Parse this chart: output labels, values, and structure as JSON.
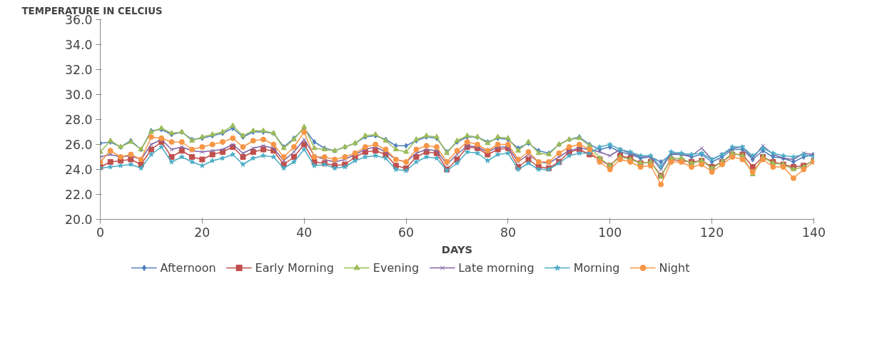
{
  "chart_data": {
    "type": "line",
    "ylabel": "TEMPERATURE IN CELCIUS",
    "xlabel": "DAYS",
    "x": [
      0,
      2,
      4,
      6,
      8,
      10,
      12,
      14,
      16,
      18,
      20,
      22,
      24,
      26,
      28,
      30,
      32,
      34,
      36,
      38,
      40,
      42,
      44,
      46,
      48,
      50,
      52,
      54,
      56,
      58,
      60,
      62,
      64,
      66,
      68,
      70,
      72,
      74,
      76,
      78,
      80,
      82,
      84,
      86,
      88,
      90,
      92,
      94,
      96,
      98,
      100,
      102,
      104,
      106,
      108,
      110,
      112,
      114,
      116,
      118,
      120,
      122,
      124,
      126,
      128,
      130,
      132,
      134,
      136,
      138,
      140
    ],
    "xlim": [
      0,
      140
    ],
    "xticks": [
      0,
      20,
      40,
      60,
      80,
      100,
      120,
      140
    ],
    "ylim": [
      20,
      36
    ],
    "yticks": [
      {
        "value": 20,
        "label": "20.0"
      },
      {
        "value": 22,
        "label": "22.0"
      },
      {
        "value": 24,
        "label": "24.0"
      },
      {
        "value": 26,
        "label": "26.0"
      },
      {
        "value": 28,
        "label": "28.0"
      },
      {
        "value": 30,
        "label": "30.0"
      },
      {
        "value": 32,
        "label": "32.0"
      },
      {
        "value": 34,
        "label": "34.0"
      },
      {
        "value": 36,
        "label": "36.0"
      }
    ],
    "grid": false,
    "legend": "bottom",
    "line_style": "solid",
    "series": [
      {
        "name": "Afternoon",
        "color": "#4f81bd",
        "marker": "diamond",
        "values": [
          26.1,
          26.2,
          25.8,
          26.3,
          25.6,
          27.1,
          27.2,
          26.8,
          27.0,
          26.4,
          26.5,
          26.7,
          26.9,
          27.3,
          26.6,
          27.0,
          27.0,
          26.9,
          25.8,
          26.5,
          27.3,
          26.2,
          25.7,
          25.5,
          25.8,
          26.1,
          26.6,
          26.7,
          26.4,
          25.9,
          25.9,
          26.3,
          26.6,
          26.5,
          25.4,
          26.2,
          26.6,
          26.6,
          26.2,
          26.5,
          26.4,
          25.7,
          26.1,
          25.5,
          25.3,
          26.0,
          26.4,
          26.6,
          26.0,
          25.6,
          25.8,
          25.4,
          25.2,
          24.9,
          25.0,
          24.6,
          25.2,
          25.2,
          25.0,
          25.2,
          24.6,
          25.0,
          25.6,
          25.6,
          24.8,
          25.5,
          25.0,
          24.9,
          24.6,
          25.0,
          25.2
        ]
      },
      {
        "name": "Early Morning",
        "color": "#c0504d",
        "marker": "square",
        "values": [
          24.2,
          24.6,
          24.7,
          24.8,
          24.4,
          25.6,
          26.2,
          25.0,
          25.5,
          25.0,
          24.8,
          25.2,
          25.4,
          25.8,
          25.0,
          25.4,
          25.6,
          25.5,
          24.4,
          25.0,
          26.0,
          24.6,
          24.5,
          24.3,
          24.4,
          25.0,
          25.4,
          25.5,
          25.2,
          24.3,
          24.1,
          25.0,
          25.4,
          25.3,
          24.0,
          24.8,
          25.8,
          25.7,
          25.2,
          25.6,
          25.7,
          24.2,
          24.8,
          24.2,
          24.1,
          24.6,
          25.4,
          25.6,
          25.2,
          24.8,
          24.3,
          25.1,
          24.9,
          24.5,
          24.6,
          23.5,
          24.8,
          24.7,
          24.6,
          24.7,
          24.2,
          24.6,
          25.2,
          25.2,
          24.2,
          25.0,
          24.6,
          24.4,
          24.2,
          24.3,
          24.7
        ]
      },
      {
        "name": "Evening",
        "color": "#9bbb59",
        "marker": "triangle",
        "values": [
          25.4,
          26.3,
          25.8,
          26.2,
          25.6,
          27.0,
          27.3,
          26.9,
          27.0,
          26.3,
          26.6,
          26.8,
          27.0,
          27.5,
          26.7,
          27.1,
          27.1,
          26.9,
          25.7,
          26.4,
          27.4,
          25.7,
          25.6,
          25.5,
          25.8,
          26.1,
          26.7,
          26.8,
          26.3,
          25.6,
          25.4,
          26.4,
          26.7,
          26.6,
          25.3,
          26.3,
          26.7,
          26.6,
          26.1,
          26.6,
          26.5,
          25.5,
          26.2,
          25.3,
          25.2,
          26.0,
          26.4,
          26.5,
          25.9,
          24.9,
          24.3,
          25.0,
          24.8,
          24.5,
          24.6,
          23.4,
          24.9,
          24.9,
          24.5,
          24.7,
          24.1,
          24.6,
          25.3,
          25.1,
          23.6,
          25.0,
          24.5,
          24.4,
          24.0,
          24.2,
          24.8
        ]
      },
      {
        "name": "Late morning",
        "color": "#8064a2",
        "marker": "cross",
        "values": [
          25.0,
          25.2,
          25.0,
          25.1,
          24.8,
          26.0,
          26.4,
          25.6,
          25.8,
          25.5,
          25.4,
          25.5,
          25.6,
          26.0,
          25.3,
          25.7,
          25.9,
          25.7,
          24.7,
          25.4,
          26.4,
          25.1,
          24.8,
          24.6,
          24.8,
          25.2,
          25.6,
          25.8,
          25.4,
          24.8,
          24.6,
          25.3,
          25.6,
          25.5,
          24.4,
          25.2,
          25.9,
          25.8,
          25.4,
          25.8,
          25.8,
          24.6,
          25.2,
          24.6,
          24.5,
          25.0,
          25.5,
          25.7,
          25.6,
          25.4,
          25.1,
          25.6,
          25.3,
          25.0,
          25.0,
          24.0,
          25.3,
          25.2,
          25.1,
          25.7,
          24.8,
          25.2,
          25.7,
          25.8,
          24.9,
          25.9,
          25.2,
          24.9,
          24.8,
          25.3,
          25.2
        ]
      },
      {
        "name": "Morning",
        "color": "#4bacc6",
        "marker": "star",
        "values": [
          24.1,
          24.2,
          24.3,
          24.4,
          24.1,
          25.2,
          25.8,
          24.6,
          25.0,
          24.6,
          24.3,
          24.7,
          24.9,
          25.2,
          24.4,
          24.9,
          25.1,
          25.0,
          24.1,
          24.6,
          25.6,
          24.3,
          24.4,
          24.1,
          24.2,
          24.7,
          25.0,
          25.1,
          24.9,
          24.0,
          23.9,
          24.6,
          25.0,
          24.9,
          23.9,
          24.5,
          25.4,
          25.3,
          24.7,
          25.2,
          25.3,
          24.0,
          24.5,
          24.0,
          24.0,
          24.5,
          25.1,
          25.3,
          25.3,
          25.8,
          26.0,
          25.6,
          25.4,
          25.1,
          25.1,
          24.2,
          25.4,
          25.3,
          25.2,
          25.3,
          24.8,
          25.2,
          25.8,
          25.8,
          25.1,
          25.7,
          25.3,
          25.1,
          25.0,
          25.2,
          25.0
        ]
      },
      {
        "name": "Night",
        "color": "#f79646",
        "marker": "circle",
        "values": [
          24.6,
          25.5,
          25.0,
          25.2,
          24.8,
          26.6,
          26.5,
          26.2,
          26.2,
          25.6,
          25.8,
          26.0,
          26.2,
          26.5,
          25.8,
          26.3,
          26.4,
          26.0,
          25.0,
          25.8,
          27.0,
          25.0,
          25.0,
          24.8,
          25.0,
          25.3,
          25.8,
          26.0,
          25.6,
          24.8,
          24.6,
          25.6,
          25.9,
          25.8,
          24.6,
          25.5,
          26.2,
          26.0,
          25.5,
          26.0,
          26.0,
          24.8,
          25.4,
          24.6,
          24.6,
          25.3,
          25.8,
          26.0,
          25.6,
          24.6,
          24.0,
          24.8,
          24.6,
          24.2,
          24.3,
          22.8,
          24.6,
          24.6,
          24.2,
          24.4,
          23.8,
          24.4,
          25.0,
          24.8,
          23.8,
          24.8,
          24.2,
          24.2,
          23.3,
          24.0,
          24.6
        ]
      }
    ]
  }
}
